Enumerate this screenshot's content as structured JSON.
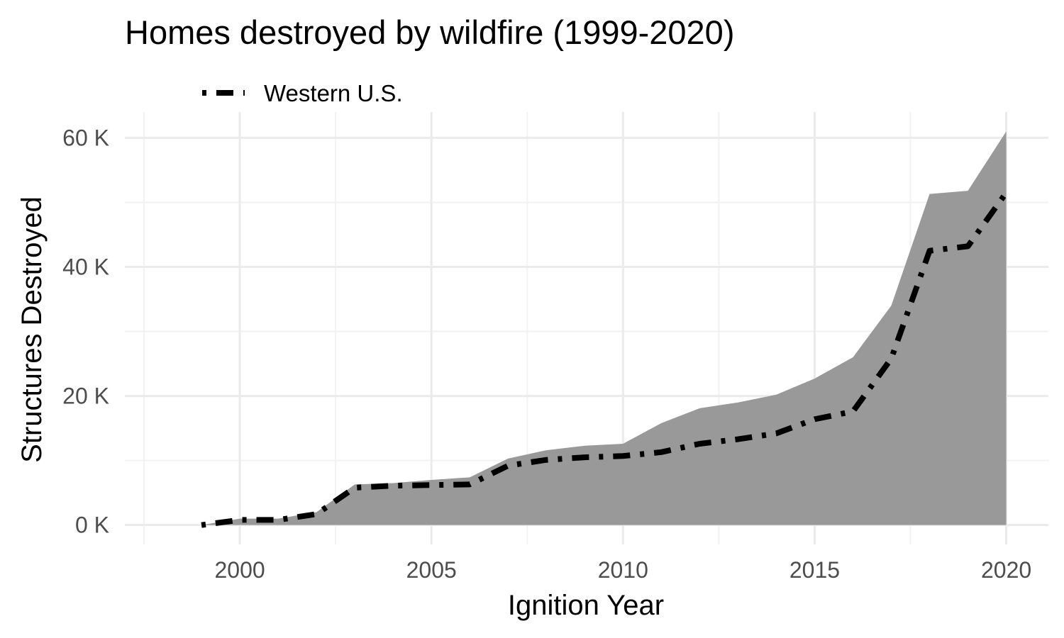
{
  "chart_data": {
    "type": "area",
    "title": "Homes destroyed by wildfire (1999-2020)",
    "xlabel": "Ignition Year",
    "ylabel": "Structures Destroyed",
    "xlim": [
      1997,
      2021.1
    ],
    "ylim": [
      -3000,
      64000
    ],
    "x_ticks": [
      2000,
      2005,
      2010,
      2015,
      2020
    ],
    "x_tick_labels": [
      "2000",
      "2005",
      "2010",
      "2015",
      "2020"
    ],
    "y_ticks": [
      0,
      20000,
      40000,
      60000
    ],
    "y_tick_labels": [
      "0 K",
      "20 K",
      "40 K",
      "60 K"
    ],
    "grid": true,
    "legend_position": "top-left",
    "x": [
      1999,
      2000,
      2001,
      2002,
      2003,
      2004,
      2005,
      2006,
      2007,
      2008,
      2009,
      2010,
      2011,
      2012,
      2013,
      2014,
      2015,
      2016,
      2017,
      2018,
      2019,
      2020
    ],
    "series": [
      {
        "style": "filled area",
        "color": "#999999",
        "values": [
          0,
          1000,
          1000,
          2000,
          6300,
          6500,
          7000,
          7400,
          10300,
          11600,
          12300,
          12600,
          15800,
          18100,
          19000,
          20200,
          22700,
          26000,
          34000,
          51300,
          51800,
          61000
        ]
      },
      {
        "name": "Western U.S.",
        "style": "dotdash line",
        "color": "#000000",
        "values": [
          0,
          800,
          800,
          1700,
          5800,
          6100,
          6200,
          6300,
          9200,
          10100,
          10500,
          10700,
          11300,
          12600,
          13300,
          14200,
          16400,
          17600,
          25800,
          42500,
          43200,
          51500
        ]
      }
    ]
  }
}
